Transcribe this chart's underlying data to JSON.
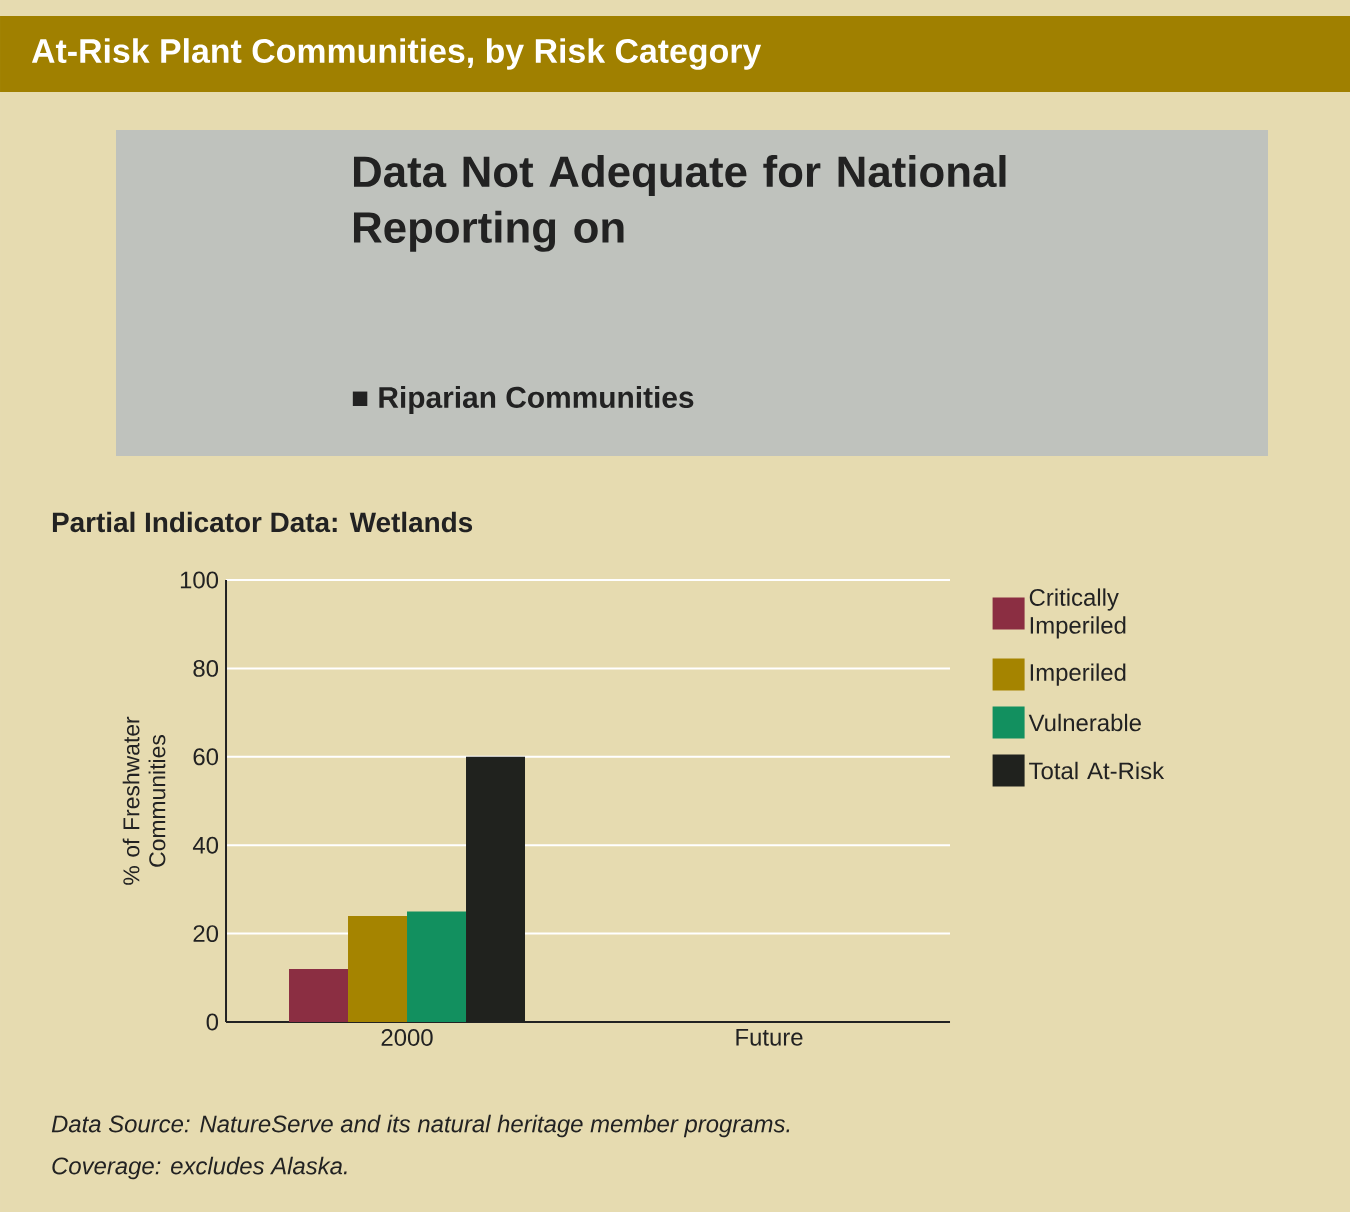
{
  "chart_data": {
    "type": "bar",
    "title": "At-Risk Plant Communities, by Risk Category",
    "subtitle": "Partial Indicator Data: Wetlands",
    "ylabel": "% of Freshwater Communities",
    "categories": [
      "2000",
      "Future"
    ],
    "series": [
      {
        "name": "Critically Imperiled",
        "color": "#8b2e42",
        "values": [
          12,
          null
        ]
      },
      {
        "name": "Imperiled",
        "color": "#a58400",
        "values": [
          24,
          null
        ]
      },
      {
        "name": "Vulnerable",
        "color": "#12905f",
        "values": [
          25,
          null
        ]
      },
      {
        "name": "Total At-Risk",
        "color": "#20221e",
        "values": [
          60,
          null
        ]
      }
    ],
    "ylim": [
      0,
      100
    ],
    "yticks": [
      0,
      20,
      40,
      60,
      80,
      100
    ],
    "grid": "y",
    "legend": "right",
    "annotations": [
      "Data Not Adequate for National Reporting on",
      "■ Riparian Communities",
      "Data Source: NatureServe and its natural heritage member programs.",
      "Coverage: excludes Alaska."
    ]
  }
}
